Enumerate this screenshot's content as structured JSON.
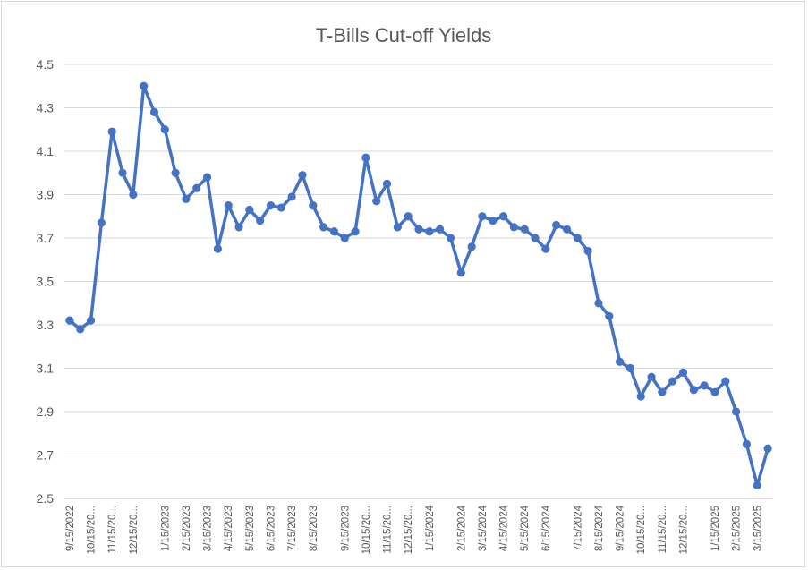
{
  "chart_data": {
    "type": "line",
    "title": "T-Bills Cut-off Yields",
    "xlabel": "",
    "ylabel": "",
    "ylim": [
      2.5,
      4.5
    ],
    "yticks": [
      2.5,
      2.7,
      2.9,
      3.1,
      3.3,
      3.5,
      3.7,
      3.9,
      4.1,
      4.3,
      4.5
    ],
    "ytick_labels": [
      "2.5",
      "2.7",
      "2.9",
      "3.1",
      "3.3",
      "3.5",
      "3.7",
      "3.9",
      "4.1",
      "4.3",
      "4.5"
    ],
    "grid": "horizontal",
    "legend": "none",
    "line_color": "#4472C4",
    "grid_color": "#d9d9d9",
    "xtick_labels": [
      {
        "index": 0,
        "text": "9/15/2022"
      },
      {
        "index": 2,
        "text": "10/15/20..."
      },
      {
        "index": 4,
        "text": "11/15/20..."
      },
      {
        "index": 6,
        "text": "12/15/20..."
      },
      {
        "index": 9,
        "text": "1/15/2023"
      },
      {
        "index": 11,
        "text": "2/15/2023"
      },
      {
        "index": 13,
        "text": "3/15/2023"
      },
      {
        "index": 15,
        "text": "4/15/2023"
      },
      {
        "index": 17,
        "text": "5/15/2023"
      },
      {
        "index": 19,
        "text": "6/15/2023"
      },
      {
        "index": 21,
        "text": "7/15/2023"
      },
      {
        "index": 23,
        "text": "8/15/2023"
      },
      {
        "index": 26,
        "text": "9/15/2023"
      },
      {
        "index": 28,
        "text": "10/15/20..."
      },
      {
        "index": 30,
        "text": "11/15/20..."
      },
      {
        "index": 32,
        "text": "12/15/20..."
      },
      {
        "index": 34,
        "text": "1/15/2024"
      },
      {
        "index": 37,
        "text": "2/15/2024"
      },
      {
        "index": 39,
        "text": "3/15/2024"
      },
      {
        "index": 41,
        "text": "4/15/2024"
      },
      {
        "index": 43,
        "text": "5/15/2024"
      },
      {
        "index": 45,
        "text": "6/15/2024"
      },
      {
        "index": 48,
        "text": "7/15/2024"
      },
      {
        "index": 50,
        "text": "8/15/2024"
      },
      {
        "index": 52,
        "text": "9/15/2024"
      },
      {
        "index": 54,
        "text": "10/15/20..."
      },
      {
        "index": 56,
        "text": "11/15/20..."
      },
      {
        "index": 58,
        "text": "12/15/20..."
      },
      {
        "index": 61,
        "text": "1/15/2025"
      },
      {
        "index": 63,
        "text": "2/15/2025"
      },
      {
        "index": 65,
        "text": "3/15/2025"
      }
    ],
    "values": [
      3.32,
      3.28,
      3.32,
      3.77,
      4.19,
      4.0,
      3.9,
      4.4,
      4.28,
      4.2,
      4.0,
      3.88,
      3.93,
      3.98,
      3.65,
      3.85,
      3.75,
      3.83,
      3.78,
      3.85,
      3.84,
      3.89,
      3.99,
      3.85,
      3.75,
      3.73,
      3.7,
      3.73,
      4.07,
      3.87,
      3.95,
      3.75,
      3.8,
      3.74,
      3.73,
      3.74,
      3.7,
      3.54,
      3.66,
      3.8,
      3.78,
      3.8,
      3.75,
      3.74,
      3.7,
      3.65,
      3.76,
      3.74,
      3.7,
      3.64,
      3.4,
      3.34,
      3.13,
      3.1,
      2.97,
      3.06,
      2.99,
      3.04,
      3.08,
      3.0,
      3.02,
      2.99,
      3.04,
      2.9,
      2.75,
      2.56,
      2.73
    ]
  }
}
